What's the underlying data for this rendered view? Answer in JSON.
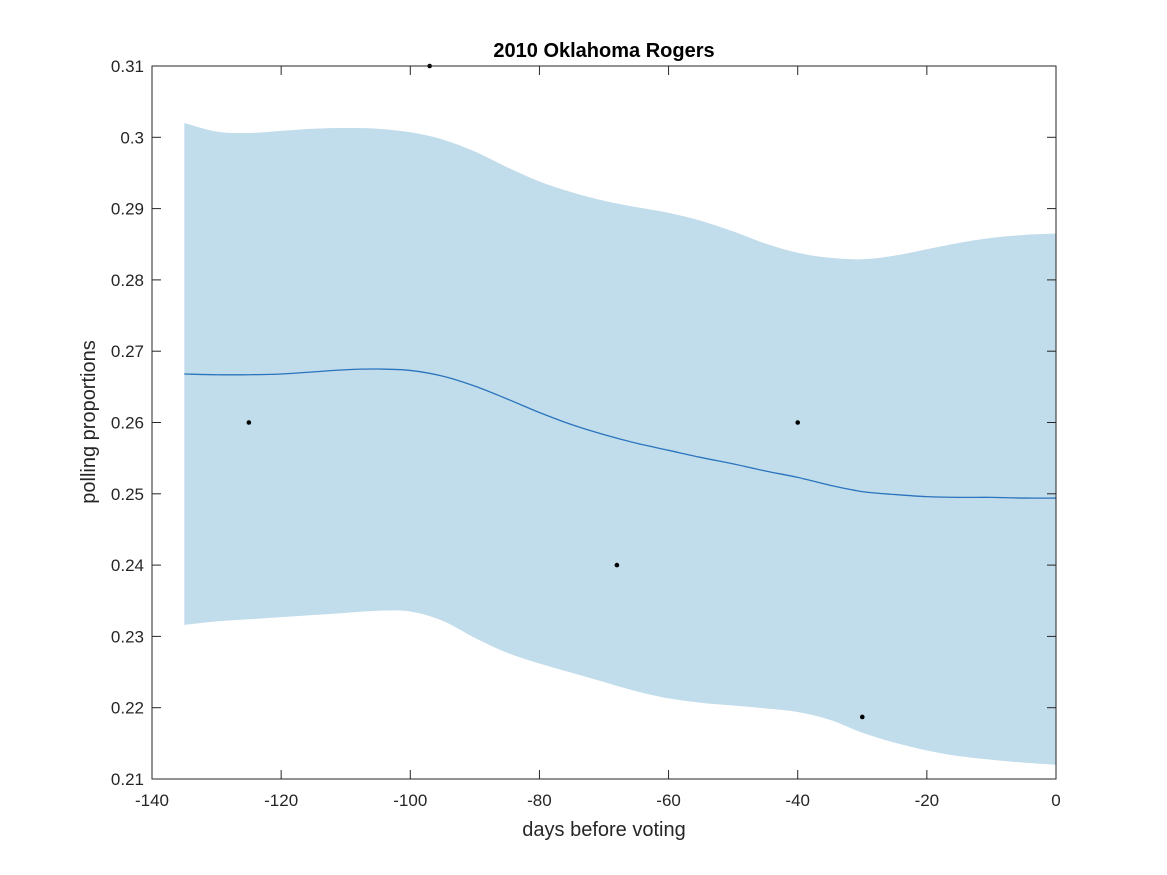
{
  "chart_data": {
    "type": "line",
    "title": "2010 Oklahoma Rogers",
    "xlabel": "days before voting",
    "ylabel": "polling proportions",
    "xlim": [
      -140,
      0
    ],
    "ylim": [
      0.21,
      0.31
    ],
    "x_ticks": [
      -140,
      -120,
      -100,
      -80,
      -60,
      -40,
      -20,
      0
    ],
    "x_tick_labels": [
      "-140",
      "-120",
      "-100",
      "-80",
      "-60",
      "-40",
      "-20",
      "0"
    ],
    "y_ticks": [
      0.21,
      0.22,
      0.23,
      0.24,
      0.25,
      0.26,
      0.27,
      0.28,
      0.29,
      0.3,
      0.31
    ],
    "y_tick_labels": [
      "0.21",
      "0.22",
      "0.23",
      "0.24",
      "0.25",
      "0.26",
      "0.27",
      "0.28",
      "0.29",
      "0.3",
      "0.31"
    ],
    "grid": false,
    "box": true,
    "colors": {
      "band": "#c1dceb",
      "line": "#2a74bd",
      "points": "#000000",
      "axes": "#262626"
    },
    "series": [
      {
        "kind": "band",
        "x": [
          -135,
          -130,
          -125,
          -120,
          -115,
          -110,
          -105,
          -100,
          -95,
          -90,
          -85,
          -80,
          -75,
          -70,
          -65,
          -60,
          -55,
          -50,
          -45,
          -40,
          -35,
          -30,
          -25,
          -20,
          -15,
          -10,
          -5,
          0
        ],
        "upper": [
          0.302,
          0.3008,
          0.3006,
          0.3009,
          0.3012,
          0.3013,
          0.3012,
          0.3007,
          0.2997,
          0.298,
          0.2958,
          0.2938,
          0.2923,
          0.2911,
          0.2902,
          0.2894,
          0.2883,
          0.2868,
          0.2851,
          0.2838,
          0.2831,
          0.2829,
          0.2834,
          0.2843,
          0.2852,
          0.2859,
          0.2863,
          0.2865
        ],
        "lower": [
          0.2316,
          0.2321,
          0.2324,
          0.2327,
          0.233,
          0.2333,
          0.2336,
          0.2335,
          0.2322,
          0.2298,
          0.2277,
          0.2262,
          0.2249,
          0.2236,
          0.2223,
          0.2213,
          0.2207,
          0.2203,
          0.2199,
          0.2194,
          0.2183,
          0.2165,
          0.2151,
          0.214,
          0.2132,
          0.2127,
          0.2123,
          0.212
        ]
      },
      {
        "kind": "line",
        "x": [
          -135,
          -130,
          -125,
          -120,
          -115,
          -110,
          -105,
          -100,
          -95,
          -90,
          -85,
          -80,
          -75,
          -70,
          -65,
          -60,
          -55,
          -50,
          -45,
          -40,
          -35,
          -30,
          -25,
          -20,
          -15,
          -10,
          -5,
          0
        ],
        "values": [
          0.2668,
          0.2667,
          0.2667,
          0.2668,
          0.2671,
          0.2674,
          0.2675,
          0.2673,
          0.2665,
          0.2651,
          0.2633,
          0.2614,
          0.2597,
          0.2583,
          0.2571,
          0.2561,
          0.2551,
          0.2542,
          0.2532,
          0.2523,
          0.2512,
          0.2503,
          0.2499,
          0.2496,
          0.2495,
          0.2495,
          0.2494,
          0.2494
        ]
      },
      {
        "kind": "scatter",
        "x": [
          -125,
          -97,
          -68,
          -40,
          -30
        ],
        "values": [
          0.26,
          0.31,
          0.24,
          0.26,
          0.2187
        ]
      }
    ]
  }
}
